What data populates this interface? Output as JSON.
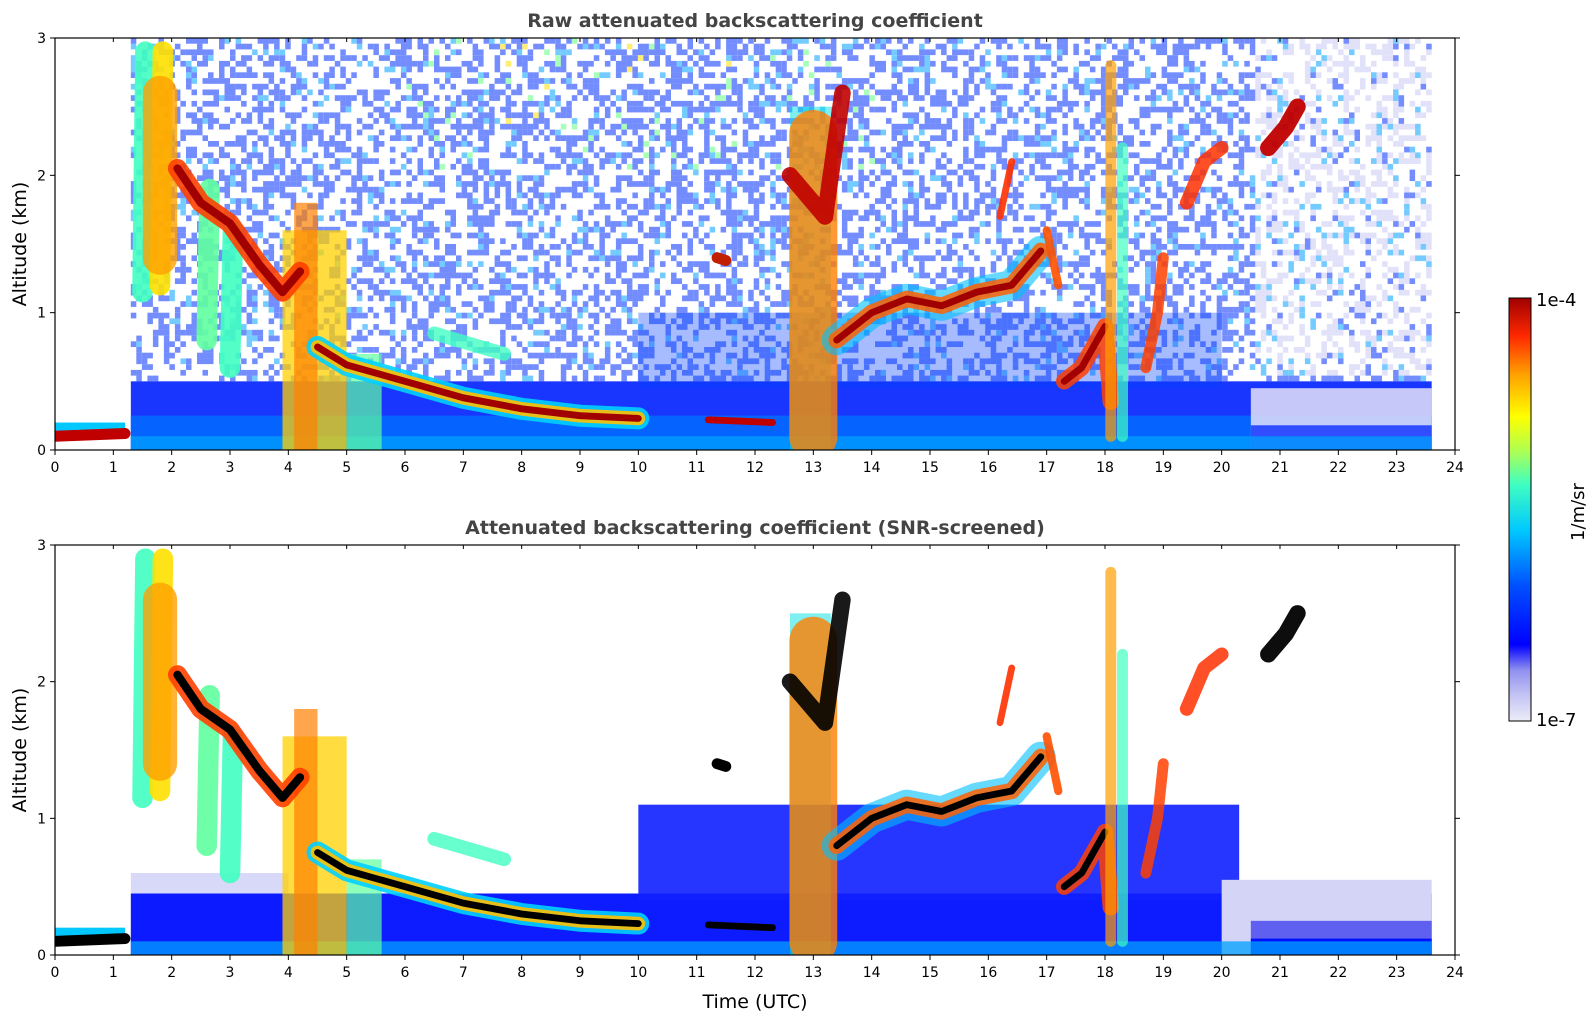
{
  "chart_data": [
    {
      "type": "heatmap",
      "title": "Raw attenuated backscattering coefficient",
      "xlabel": "",
      "ylabel": "Altitude (km)",
      "xlim": [
        0,
        24
      ],
      "ylim": [
        0,
        3
      ],
      "x_ticks": [
        "0",
        "1",
        "2",
        "3",
        "4",
        "5",
        "6",
        "7",
        "8",
        "9",
        "10",
        "11",
        "12",
        "13",
        "14",
        "15",
        "16",
        "17",
        "18",
        "19",
        "20",
        "21",
        "22",
        "23",
        "24"
      ],
      "y_ticks": [
        "0",
        "1",
        "2",
        "3"
      ],
      "data_end_hour": 23.6,
      "features": [
        {
          "name": "surface-layer",
          "t": [
            0,
            1.2
          ],
          "alt": [
            0.05,
            0.15
          ],
          "level": "high"
        },
        {
          "name": "boundary-layer-aerosol",
          "t": [
            1.3,
            23.6
          ],
          "alt": [
            0,
            0.5
          ],
          "level": "low-mid"
        },
        {
          "name": "descending-aerosol-layer",
          "points": [
            [
              4.5,
              0.75
            ],
            [
              6,
              0.5
            ],
            [
              8,
              0.3
            ],
            [
              10,
              0.22
            ]
          ],
          "level": "high"
        },
        {
          "name": "cloud-2h",
          "points": [
            [
              2.2,
              1.9
            ],
            [
              3,
              1.6
            ],
            [
              3.8,
              1.1
            ]
          ],
          "level": "high"
        },
        {
          "name": "cloud-13h",
          "t": [
            12.6,
            13.3
          ],
          "alt": [
            1.2,
            2.5
          ],
          "level": "high"
        },
        {
          "name": "cloud-14-17h",
          "points": [
            [
              13.4,
              0.8
            ],
            [
              14,
              1.05
            ],
            [
              15,
              1.1
            ],
            [
              16,
              1.2
            ],
            [
              16.8,
              1.4
            ]
          ],
          "level": "high"
        },
        {
          "name": "cloud-19-21h",
          "points": [
            [
              19.5,
              1.9
            ],
            [
              20,
              2.2
            ],
            [
              21,
              2.3
            ],
            [
              21.3,
              2.5
            ]
          ],
          "level": "high"
        }
      ]
    },
    {
      "type": "heatmap",
      "title": "Attenuated backscattering coefficient (SNR-screened)",
      "xlabel": "Time (UTC)",
      "ylabel": "Altitude (km)",
      "xlim": [
        0,
        24
      ],
      "ylim": [
        0,
        3
      ],
      "x_ticks": [
        "0",
        "1",
        "2",
        "3",
        "4",
        "5",
        "6",
        "7",
        "8",
        "9",
        "10",
        "11",
        "12",
        "13",
        "14",
        "15",
        "16",
        "17",
        "18",
        "19",
        "20",
        "21",
        "22",
        "23",
        "24"
      ],
      "y_ticks": [
        "0",
        "1",
        "2",
        "3"
      ],
      "data_end_hour": 23.6
    }
  ],
  "colorbar": {
    "max_label": "1e-4",
    "min_label": "1e-7",
    "unit_label": "1/m/sr",
    "scale": "log",
    "colors": [
      "#e8e8f8",
      "#c8c8f4",
      "#a0a0f0",
      "#0000ff",
      "#0060ff",
      "#00c0ff",
      "#40ffc0",
      "#a0ff60",
      "#ffff00",
      "#ffa000",
      "#ff3000",
      "#a00000"
    ]
  }
}
